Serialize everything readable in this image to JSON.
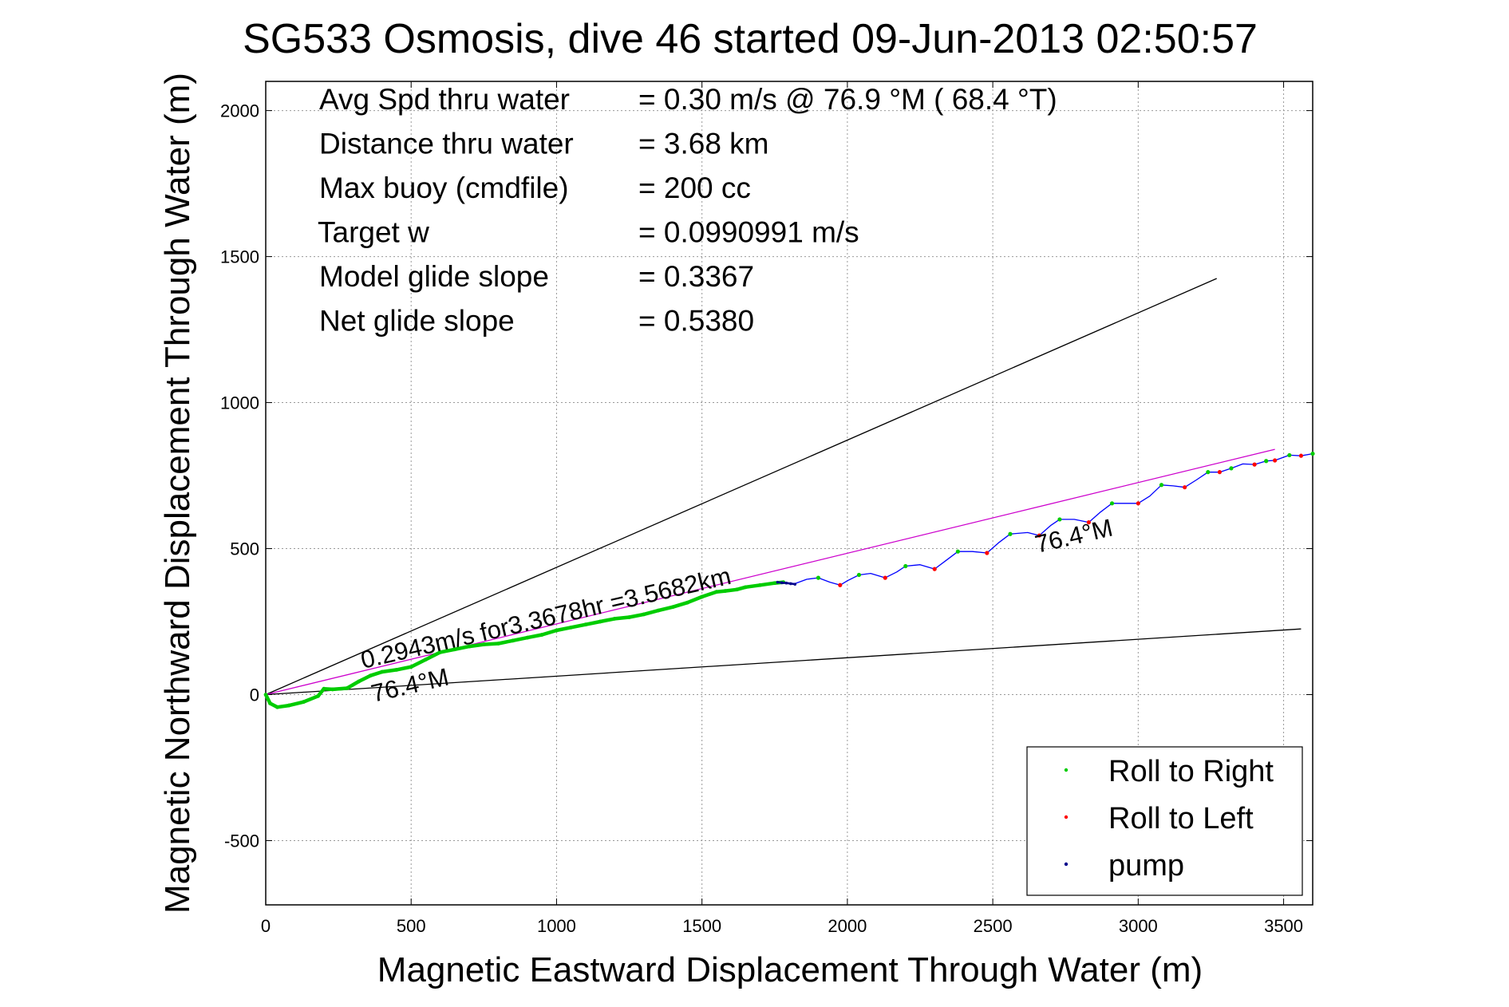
{
  "chart_data": {
    "type": "line",
    "title": "SG533 Osmosis, dive 46 started 09-Jun-2013 02:50:57",
    "xlabel": "Magnetic Eastward Displacement Through Water (m)",
    "ylabel": "Magnetic Northward Displacement Through Water (m)",
    "xlim": [
      0,
      3600
    ],
    "ylim": [
      -720,
      2100
    ],
    "xticks": [
      0,
      500,
      1000,
      1500,
      2000,
      2500,
      3000,
      3500
    ],
    "yticks": [
      -500,
      0,
      500,
      1000,
      1500,
      2000
    ],
    "xtick_labels": [
      "0",
      "500",
      "1000",
      "1500",
      "2000",
      "2500",
      "3000",
      "3500"
    ],
    "ytick_labels": [
      "-500",
      "0",
      "500",
      "1000",
      "1500",
      "2000"
    ],
    "grid": true,
    "stats": [
      {
        "label": "Avg Spd thru water",
        "value": "=  0.30 m/s @  76.9 °M ( 68.4 °T)"
      },
      {
        "label": "Distance thru water",
        "value": "=  3.68 km"
      },
      {
        "label": "Max buoy (cmdfile)",
        "value": "= 200 cc"
      },
      {
        "label": "Target w",
        "value": "= 0.0990991 m/s"
      },
      {
        "label": "Model glide slope",
        "value": "= 0.3367"
      },
      {
        "label": "Net glide slope",
        "value": "= 0.5380"
      }
    ],
    "annotations": {
      "speed_text": "0.2943m/s for3.3678hr =3.5682km",
      "heading_lower": "76.4°M",
      "heading_upper": "76.4°M"
    },
    "reference_lines": [
      {
        "x": [
          0,
          3270
        ],
        "y": [
          0,
          1425
        ],
        "color": "#000000"
      },
      {
        "x": [
          0,
          3560
        ],
        "y": [
          0,
          225
        ],
        "color": "#000000"
      },
      {
        "x": [
          0,
          3470
        ],
        "y": [
          0,
          840
        ],
        "color": "#cc00cc"
      }
    ],
    "series": [
      {
        "name": "Roll to Right",
        "color": "#00cc00",
        "x": [
          0,
          15,
          40,
          80,
          130,
          180,
          200,
          230,
          280,
          320,
          360,
          400,
          450,
          500,
          550,
          600,
          650,
          700,
          750,
          800,
          850,
          900,
          950,
          1000,
          1050,
          1100,
          1150,
          1200,
          1250,
          1300,
          1350,
          1400,
          1450,
          1500,
          1550,
          1580,
          1620,
          1650,
          1700,
          1750,
          1780
        ],
        "y": [
          0,
          -30,
          -43,
          -37,
          -25,
          -5,
          20,
          18,
          22,
          45,
          65,
          78,
          85,
          95,
          120,
          145,
          155,
          165,
          172,
          175,
          185,
          195,
          205,
          220,
          230,
          240,
          250,
          260,
          265,
          275,
          288,
          300,
          315,
          335,
          352,
          355,
          360,
          368,
          375,
          382,
          385
        ]
      },
      {
        "name": "Roll to Left",
        "color": "#ff0000",
        "x": [],
        "y": []
      },
      {
        "name": "pump",
        "color": "#00008b",
        "x": [
          1760,
          1775,
          1790,
          1805,
          1820
        ],
        "y": [
          385,
          383,
          382,
          380,
          378
        ]
      }
    ],
    "track": {
      "color": "#0000ff",
      "x": [
        1780,
        1820,
        1860,
        1900,
        1940,
        1975,
        2000,
        2040,
        2080,
        2130,
        2170,
        2200,
        2250,
        2300,
        2340,
        2380,
        2430,
        2480,
        2520,
        2560,
        2620,
        2660,
        2700,
        2730,
        2780,
        2830,
        2870,
        2910,
        2960,
        3000,
        3040,
        3080,
        3120,
        3160,
        3200,
        3240,
        3280,
        3320,
        3360,
        3400,
        3440,
        3470,
        3520,
        3560,
        3600
      ],
      "y": [
        385,
        380,
        395,
        400,
        385,
        375,
        390,
        410,
        415,
        400,
        420,
        440,
        445,
        430,
        460,
        490,
        490,
        485,
        520,
        550,
        555,
        545,
        580,
        600,
        600,
        590,
        625,
        655,
        655,
        655,
        680,
        718,
        715,
        710,
        735,
        762,
        762,
        775,
        790,
        788,
        800,
        802,
        820,
        818,
        825
      ]
    },
    "track_markers": [
      {
        "x": 1900,
        "y": 400,
        "color": "#00cc00"
      },
      {
        "x": 1975,
        "y": 375,
        "color": "#ff0000"
      },
      {
        "x": 2040,
        "y": 410,
        "color": "#00cc00"
      },
      {
        "x": 2130,
        "y": 400,
        "color": "#ff0000"
      },
      {
        "x": 2200,
        "y": 440,
        "color": "#00cc00"
      },
      {
        "x": 2300,
        "y": 430,
        "color": "#ff0000"
      },
      {
        "x": 2380,
        "y": 490,
        "color": "#00cc00"
      },
      {
        "x": 2480,
        "y": 485,
        "color": "#ff0000"
      },
      {
        "x": 2560,
        "y": 550,
        "color": "#00cc00"
      },
      {
        "x": 2660,
        "y": 545,
        "color": "#ff0000"
      },
      {
        "x": 2730,
        "y": 600,
        "color": "#00cc00"
      },
      {
        "x": 2830,
        "y": 590,
        "color": "#ff0000"
      },
      {
        "x": 2910,
        "y": 655,
        "color": "#00cc00"
      },
      {
        "x": 3000,
        "y": 655,
        "color": "#ff0000"
      },
      {
        "x": 3080,
        "y": 718,
        "color": "#00cc00"
      },
      {
        "x": 3160,
        "y": 710,
        "color": "#ff0000"
      },
      {
        "x": 3240,
        "y": 762,
        "color": "#00cc00"
      },
      {
        "x": 3280,
        "y": 762,
        "color": "#ff0000"
      },
      {
        "x": 3320,
        "y": 775,
        "color": "#00cc00"
      },
      {
        "x": 3400,
        "y": 788,
        "color": "#ff0000"
      },
      {
        "x": 3440,
        "y": 800,
        "color": "#00cc00"
      },
      {
        "x": 3470,
        "y": 802,
        "color": "#ff0000"
      },
      {
        "x": 3520,
        "y": 820,
        "color": "#00cc00"
      },
      {
        "x": 3560,
        "y": 818,
        "color": "#ff0000"
      },
      {
        "x": 3600,
        "y": 825,
        "color": "#00cc00"
      }
    ],
    "legend": {
      "placement": "bottom-right",
      "entries": [
        {
          "label": "Roll to Right",
          "color": "#00cc00"
        },
        {
          "label": "Roll to Left",
          "color": "#ff0000"
        },
        {
          "label": "pump",
          "color": "#00008b"
        }
      ]
    }
  }
}
